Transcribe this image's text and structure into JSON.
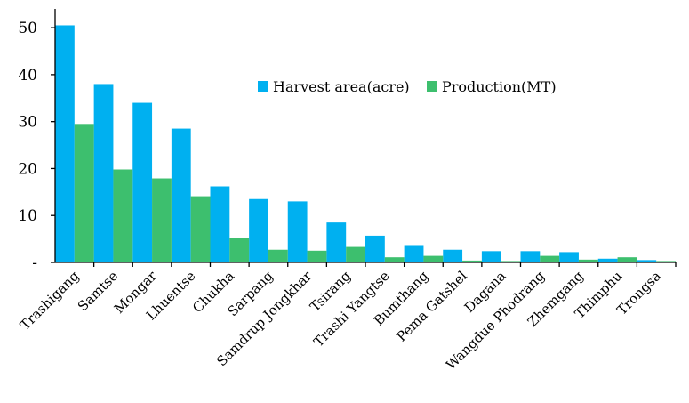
{
  "chart_data": {
    "type": "bar",
    "categories": [
      "Trashigang",
      "Samtse",
      "Mongar",
      "Lhuentse",
      "Chukha",
      "Sarpang",
      "Samdrup Jongkhar",
      "Tsirang",
      "Trashi Yangtse",
      "Bumthang",
      "Pema Gatshel",
      "Dagana",
      "Wangdue Phodrang",
      "Zhemgang",
      "Thimphu",
      "Trongsa"
    ],
    "series": [
      {
        "name": "Harvest area(acre)",
        "color": "#00b0f0",
        "values": [
          50.5,
          38.0,
          34.0,
          28.5,
          16.2,
          13.5,
          13.0,
          8.5,
          5.7,
          3.7,
          2.7,
          2.4,
          2.4,
          2.2,
          0.8,
          0.5
        ]
      },
      {
        "name": "Production(MT)",
        "color": "#3dbf6e",
        "values": [
          29.5,
          19.8,
          17.9,
          14.1,
          5.2,
          2.7,
          2.5,
          3.3,
          1.1,
          1.4,
          0.4,
          0.3,
          1.4,
          0.6,
          1.1,
          0.3
        ]
      }
    ],
    "yticks": [
      "-",
      "10",
      "20",
      "30",
      "40",
      "50"
    ],
    "ylim": [
      0,
      54
    ],
    "legend_position": "top-right",
    "grid": false
  }
}
